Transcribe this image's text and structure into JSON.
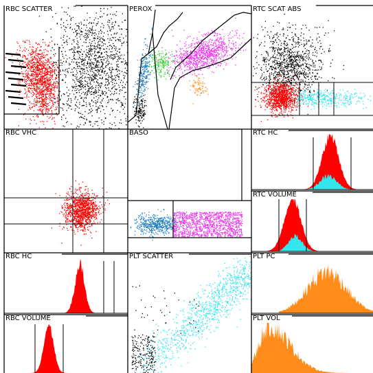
{
  "colors": {
    "background": "#ffffff",
    "border": "#000000",
    "black_cluster": "#000000",
    "red_cluster": "#ff0000",
    "cyan_cluster": "#33e6ee",
    "blue_cluster": "#1f7fbf",
    "green_cluster": "#22dd22",
    "magenta_cluster": "#ee33ee",
    "orange_cluster": "#ff8c1a"
  },
  "panels": {
    "rbc_scatter": "RBC SCATTER",
    "perox": "PEROX",
    "rtc_scat_abs": "RTC SCAT ABS",
    "rbc_vhc": "RBC VHC",
    "baso": "BASO",
    "rtc_hc": "RTC HC",
    "rtc_volume": "RTC VOLUME",
    "rbc_hc": "RBC HC",
    "plt_scatter": "PLT SCATTER",
    "plt_pc": "PLT PC",
    "rbc_volume": "RBC VOLUME",
    "plt_vol": "PLT VOL"
  },
  "chart_data": [
    {
      "type": "scatter",
      "title": "RBC SCATTER",
      "series": [
        {
          "color": "#000000",
          "description_count": 900
        },
        {
          "color": "#ff0000",
          "description_count": 900
        }
      ]
    },
    {
      "type": "scatter",
      "title": "PEROX",
      "series": [
        {
          "color": "#1f7fbf"
        },
        {
          "color": "#22dd22"
        },
        {
          "color": "#ee33ee"
        },
        {
          "color": "#ff8c1a"
        },
        {
          "color": "#000000"
        }
      ]
    },
    {
      "type": "scatter",
      "title": "RTC SCAT ABS",
      "series": [
        {
          "color": "#000000"
        },
        {
          "color": "#ff0000"
        },
        {
          "color": "#33e6ee"
        }
      ]
    },
    {
      "type": "scatter",
      "title": "RBC VHC",
      "series": [
        {
          "color": "#ff0000"
        }
      ]
    },
    {
      "type": "scatter",
      "title": "BASO",
      "series": [
        {
          "color": "#1f7fbf"
        },
        {
          "color": "#ee33ee"
        }
      ]
    },
    {
      "type": "bar",
      "title": "RTC HC",
      "series": [
        {
          "color": "#ff0000"
        },
        {
          "color": "#33e6ee"
        }
      ]
    },
    {
      "type": "bar",
      "title": "RTC VOLUME",
      "series": [
        {
          "color": "#ff0000"
        },
        {
          "color": "#33e6ee"
        }
      ]
    },
    {
      "type": "bar",
      "title": "RBC HC",
      "series": [
        {
          "color": "#ff0000"
        }
      ]
    },
    {
      "type": "scatter",
      "title": "PLT SCATTER",
      "series": [
        {
          "color": "#33e6ee"
        },
        {
          "color": "#000000"
        }
      ]
    },
    {
      "type": "bar",
      "title": "PLT PC",
      "series": [
        {
          "color": "#ff8c1a"
        }
      ]
    },
    {
      "type": "bar",
      "title": "RBC VOLUME",
      "series": [
        {
          "color": "#ff0000"
        }
      ]
    },
    {
      "type": "bar",
      "title": "PLT VOL",
      "series": [
        {
          "color": "#ff8c1a"
        }
      ]
    }
  ]
}
